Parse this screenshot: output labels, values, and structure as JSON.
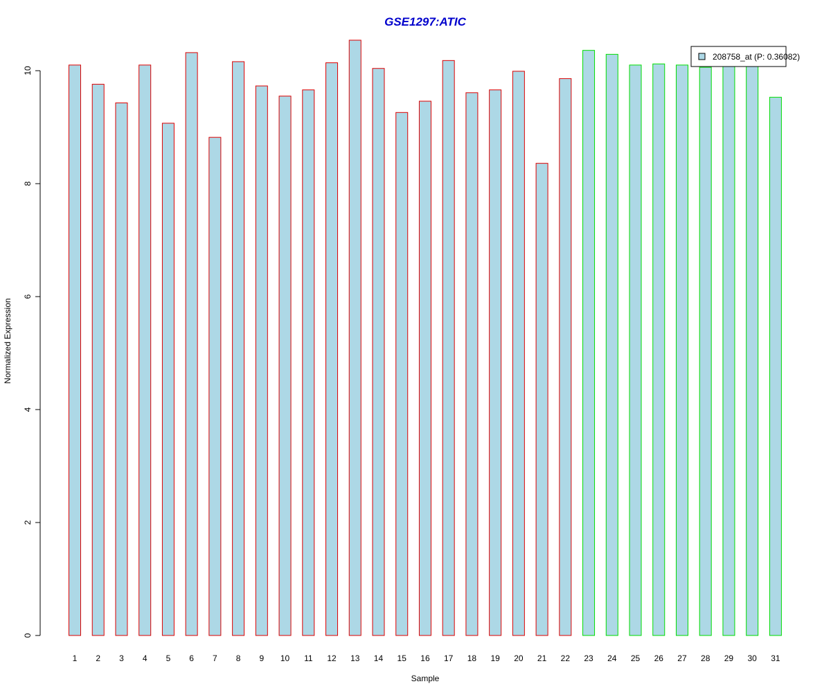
{
  "chart_data": {
    "type": "bar",
    "title": "GSE1297:ATIC",
    "xlabel": "Sample",
    "ylabel": "Normalized Expression",
    "ylim": [
      0,
      10.5
    ],
    "yticks": [
      0,
      2,
      4,
      6,
      8,
      10
    ],
    "categories": [
      "1",
      "2",
      "3",
      "4",
      "5",
      "6",
      "7",
      "8",
      "9",
      "10",
      "11",
      "12",
      "13",
      "14",
      "15",
      "16",
      "17",
      "18",
      "19",
      "20",
      "21",
      "22",
      "23",
      "24",
      "25",
      "26",
      "27",
      "28",
      "29",
      "30",
      "31"
    ],
    "series": [
      {
        "name": "208758_at (P: 0.36082)",
        "values": [
          10.1,
          9.76,
          9.43,
          10.1,
          9.07,
          10.32,
          8.82,
          10.16,
          9.73,
          9.55,
          9.66,
          10.14,
          10.54,
          10.04,
          9.26,
          9.46,
          10.18,
          9.61,
          9.66,
          9.99,
          8.36,
          9.86,
          10.36,
          10.29,
          10.1,
          10.12,
          10.1,
          10.06,
          10.1,
          10.1,
          9.53
        ]
      }
    ],
    "group_border_colors": [
      "#dd0000",
      "#dd0000",
      "#dd0000",
      "#dd0000",
      "#dd0000",
      "#dd0000",
      "#dd0000",
      "#dd0000",
      "#dd0000",
      "#dd0000",
      "#dd0000",
      "#dd0000",
      "#dd0000",
      "#dd0000",
      "#dd0000",
      "#dd0000",
      "#dd0000",
      "#dd0000",
      "#dd0000",
      "#dd0000",
      "#dd0000",
      "#dd0000",
      "#00dd00",
      "#00dd00",
      "#00dd00",
      "#00dd00",
      "#00dd00",
      "#00dd00",
      "#00dd00",
      "#00dd00",
      "#00dd00"
    ],
    "bar_fill": "#add8e6",
    "title_color": "#0000cc",
    "legend": {
      "label": "208758_at (P: 0.36082)",
      "placement": "top-right"
    },
    "grid": false
  }
}
